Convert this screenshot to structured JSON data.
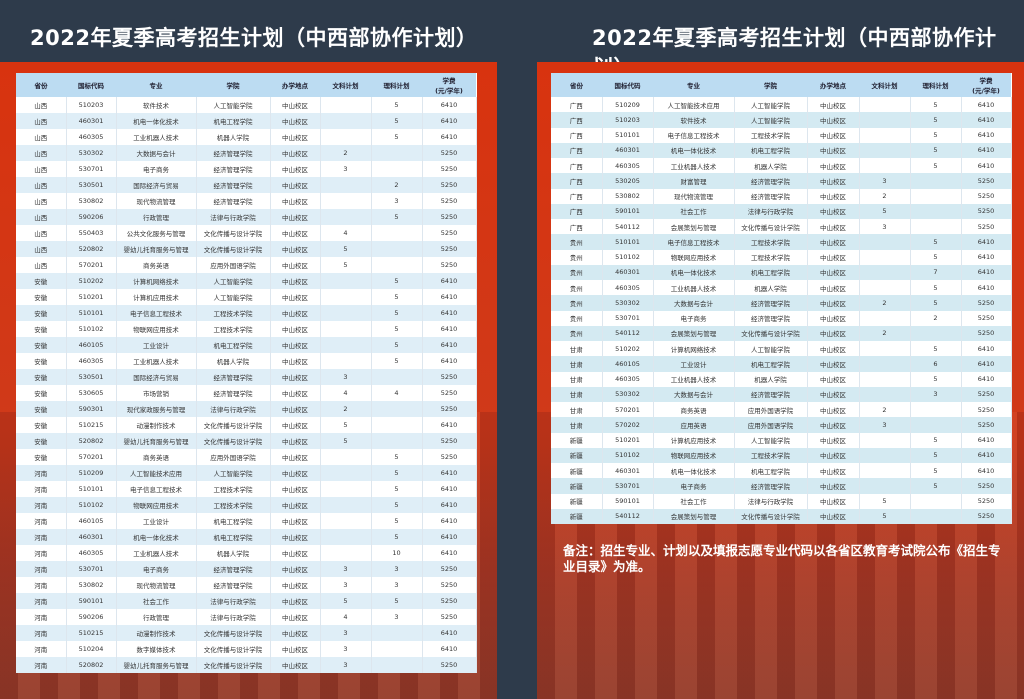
{
  "title": "2022年夏季高考招生计划（中西部协作计划）",
  "headers": [
    "省份",
    "国标代码",
    "专业",
    "学院",
    "办学地点",
    "文科计划",
    "理科计划",
    "学费\n(元/学年)"
  ],
  "left_rows": [
    [
      "山西",
      "510203",
      "软件技术",
      "人工智能学院",
      "中山校区",
      "",
      "5",
      "6410"
    ],
    [
      "山西",
      "460301",
      "机电一体化技术",
      "机电工程学院",
      "中山校区",
      "",
      "5",
      "6410"
    ],
    [
      "山西",
      "460305",
      "工业机器人技术",
      "机器人学院",
      "中山校区",
      "",
      "5",
      "6410"
    ],
    [
      "山西",
      "530302",
      "大数据与会计",
      "经济管理学院",
      "中山校区",
      "2",
      "",
      "5250"
    ],
    [
      "山西",
      "530701",
      "电子商务",
      "经济管理学院",
      "中山校区",
      "3",
      "",
      "5250"
    ],
    [
      "山西",
      "530501",
      "国际经济与贸易",
      "经济管理学院",
      "中山校区",
      "",
      "2",
      "5250"
    ],
    [
      "山西",
      "530802",
      "现代物流管理",
      "经济管理学院",
      "中山校区",
      "",
      "3",
      "5250"
    ],
    [
      "山西",
      "590206",
      "行政管理",
      "法律与行政学院",
      "中山校区",
      "",
      "5",
      "5250"
    ],
    [
      "山西",
      "550403",
      "公共文化服务与管理",
      "文化传播与设计学院",
      "中山校区",
      "4",
      "",
      "5250"
    ],
    [
      "山西",
      "520802",
      "婴幼儿托育服务与管理",
      "文化传播与设计学院",
      "中山校区",
      "5",
      "",
      "5250"
    ],
    [
      "山西",
      "570201",
      "商务英语",
      "应用外国语学院",
      "中山校区",
      "5",
      "",
      "5250"
    ],
    [
      "安徽",
      "510202",
      "计算机网络技术",
      "人工智能学院",
      "中山校区",
      "",
      "5",
      "6410"
    ],
    [
      "安徽",
      "510201",
      "计算机应用技术",
      "人工智能学院",
      "中山校区",
      "",
      "5",
      "6410"
    ],
    [
      "安徽",
      "510101",
      "电子信息工程技术",
      "工程技术学院",
      "中山校区",
      "",
      "5",
      "6410"
    ],
    [
      "安徽",
      "510102",
      "物联网应用技术",
      "工程技术学院",
      "中山校区",
      "",
      "5",
      "6410"
    ],
    [
      "安徽",
      "460105",
      "工业设计",
      "机电工程学院",
      "中山校区",
      "",
      "5",
      "6410"
    ],
    [
      "安徽",
      "460305",
      "工业机器人技术",
      "机器人学院",
      "中山校区",
      "",
      "5",
      "6410"
    ],
    [
      "安徽",
      "530501",
      "国际经济与贸易",
      "经济管理学院",
      "中山校区",
      "3",
      "",
      "5250"
    ],
    [
      "安徽",
      "530605",
      "市场营销",
      "经济管理学院",
      "中山校区",
      "4",
      "4",
      "5250"
    ],
    [
      "安徽",
      "590301",
      "现代家政服务与管理",
      "法律与行政学院",
      "中山校区",
      "2",
      "",
      "5250"
    ],
    [
      "安徽",
      "510215",
      "动漫制作技术",
      "文化传播与设计学院",
      "中山校区",
      "5",
      "",
      "6410"
    ],
    [
      "安徽",
      "520802",
      "婴幼儿托育服务与管理",
      "文化传播与设计学院",
      "中山校区",
      "5",
      "",
      "5250"
    ],
    [
      "安徽",
      "570201",
      "商务英语",
      "应用外国语学院",
      "中山校区",
      "",
      "5",
      "5250"
    ],
    [
      "河南",
      "510209",
      "人工智能技术应用",
      "人工智能学院",
      "中山校区",
      "",
      "5",
      "6410"
    ],
    [
      "河南",
      "510101",
      "电子信息工程技术",
      "工程技术学院",
      "中山校区",
      "",
      "5",
      "6410"
    ],
    [
      "河南",
      "510102",
      "物联网应用技术",
      "工程技术学院",
      "中山校区",
      "",
      "5",
      "6410"
    ],
    [
      "河南",
      "460105",
      "工业设计",
      "机电工程学院",
      "中山校区",
      "",
      "5",
      "6410"
    ],
    [
      "河南",
      "460301",
      "机电一体化技术",
      "机电工程学院",
      "中山校区",
      "",
      "5",
      "6410"
    ],
    [
      "河南",
      "460305",
      "工业机器人技术",
      "机器人学院",
      "中山校区",
      "",
      "10",
      "6410"
    ],
    [
      "河南",
      "530701",
      "电子商务",
      "经济管理学院",
      "中山校区",
      "3",
      "3",
      "5250"
    ],
    [
      "河南",
      "530802",
      "现代物流管理",
      "经济管理学院",
      "中山校区",
      "3",
      "3",
      "5250"
    ],
    [
      "河南",
      "590101",
      "社会工作",
      "法律与行政学院",
      "中山校区",
      "5",
      "5",
      "5250"
    ],
    [
      "河南",
      "590206",
      "行政管理",
      "法律与行政学院",
      "中山校区",
      "4",
      "3",
      "5250"
    ],
    [
      "河南",
      "510215",
      "动漫制作技术",
      "文化传播与设计学院",
      "中山校区",
      "3",
      "",
      "6410"
    ],
    [
      "河南",
      "510204",
      "数字媒体技术",
      "文化传播与设计学院",
      "中山校区",
      "3",
      "",
      "6410"
    ],
    [
      "河南",
      "520802",
      "婴幼儿托育服务与管理",
      "文化传播与设计学院",
      "中山校区",
      "3",
      "",
      "5250"
    ]
  ],
  "right_rows": [
    [
      "广西",
      "510209",
      "人工智能技术应用",
      "人工智能学院",
      "中山校区",
      "",
      "5",
      "6410"
    ],
    [
      "广西",
      "510203",
      "软件技术",
      "人工智能学院",
      "中山校区",
      "",
      "5",
      "6410"
    ],
    [
      "广西",
      "510101",
      "电子信息工程技术",
      "工程技术学院",
      "中山校区",
      "",
      "5",
      "6410"
    ],
    [
      "广西",
      "460301",
      "机电一体化技术",
      "机电工程学院",
      "中山校区",
      "",
      "5",
      "6410"
    ],
    [
      "广西",
      "460305",
      "工业机器人技术",
      "机器人学院",
      "中山校区",
      "",
      "5",
      "6410"
    ],
    [
      "广西",
      "530205",
      "财富管理",
      "经济管理学院",
      "中山校区",
      "3",
      "",
      "5250"
    ],
    [
      "广西",
      "530802",
      "现代物流管理",
      "经济管理学院",
      "中山校区",
      "2",
      "",
      "5250"
    ],
    [
      "广西",
      "590101",
      "社会工作",
      "法律与行政学院",
      "中山校区",
      "5",
      "",
      "5250"
    ],
    [
      "广西",
      "540112",
      "会展策划与管理",
      "文化传播与设计学院",
      "中山校区",
      "3",
      "",
      "5250"
    ],
    [
      "贵州",
      "510101",
      "电子信息工程技术",
      "工程技术学院",
      "中山校区",
      "",
      "5",
      "6410"
    ],
    [
      "贵州",
      "510102",
      "物联网应用技术",
      "工程技术学院",
      "中山校区",
      "",
      "5",
      "6410"
    ],
    [
      "贵州",
      "460301",
      "机电一体化技术",
      "机电工程学院",
      "中山校区",
      "",
      "7",
      "6410"
    ],
    [
      "贵州",
      "460305",
      "工业机器人技术",
      "机器人学院",
      "中山校区",
      "",
      "5",
      "6410"
    ],
    [
      "贵州",
      "530302",
      "大数据与会计",
      "经济管理学院",
      "中山校区",
      "2",
      "5",
      "5250"
    ],
    [
      "贵州",
      "530701",
      "电子商务",
      "经济管理学院",
      "中山校区",
      "",
      "2",
      "5250"
    ],
    [
      "贵州",
      "540112",
      "会展策划与管理",
      "文化传播与设计学院",
      "中山校区",
      "2",
      "",
      "5250"
    ],
    [
      "甘肃",
      "510202",
      "计算机网络技术",
      "人工智能学院",
      "中山校区",
      "",
      "5",
      "6410"
    ],
    [
      "甘肃",
      "460105",
      "工业设计",
      "机电工程学院",
      "中山校区",
      "",
      "6",
      "6410"
    ],
    [
      "甘肃",
      "460305",
      "工业机器人技术",
      "机器人学院",
      "中山校区",
      "",
      "5",
      "6410"
    ],
    [
      "甘肃",
      "530302",
      "大数据与会计",
      "经济管理学院",
      "中山校区",
      "",
      "3",
      "5250"
    ],
    [
      "甘肃",
      "570201",
      "商务英语",
      "应用外国语学院",
      "中山校区",
      "2",
      "",
      "5250"
    ],
    [
      "甘肃",
      "570202",
      "应用英语",
      "应用外国语学院",
      "中山校区",
      "3",
      "",
      "5250"
    ],
    [
      "新疆",
      "510201",
      "计算机应用技术",
      "人工智能学院",
      "中山校区",
      "",
      "5",
      "6410"
    ],
    [
      "新疆",
      "510102",
      "物联网应用技术",
      "工程技术学院",
      "中山校区",
      "",
      "5",
      "6410"
    ],
    [
      "新疆",
      "460301",
      "机电一体化技术",
      "机电工程学院",
      "中山校区",
      "",
      "5",
      "6410"
    ],
    [
      "新疆",
      "530701",
      "电子商务",
      "经济管理学院",
      "中山校区",
      "",
      "5",
      "5250"
    ],
    [
      "新疆",
      "590101",
      "社会工作",
      "法律与行政学院",
      "中山校区",
      "5",
      "",
      "5250"
    ],
    [
      "新疆",
      "540112",
      "会展策划与管理",
      "文化传播与设计学院",
      "中山校区",
      "5",
      "",
      "5250"
    ]
  ],
  "note": "备注：招生专业、计划以及填报志愿专业代码以各省区教育考试院公布《招生专业目录》为准。"
}
